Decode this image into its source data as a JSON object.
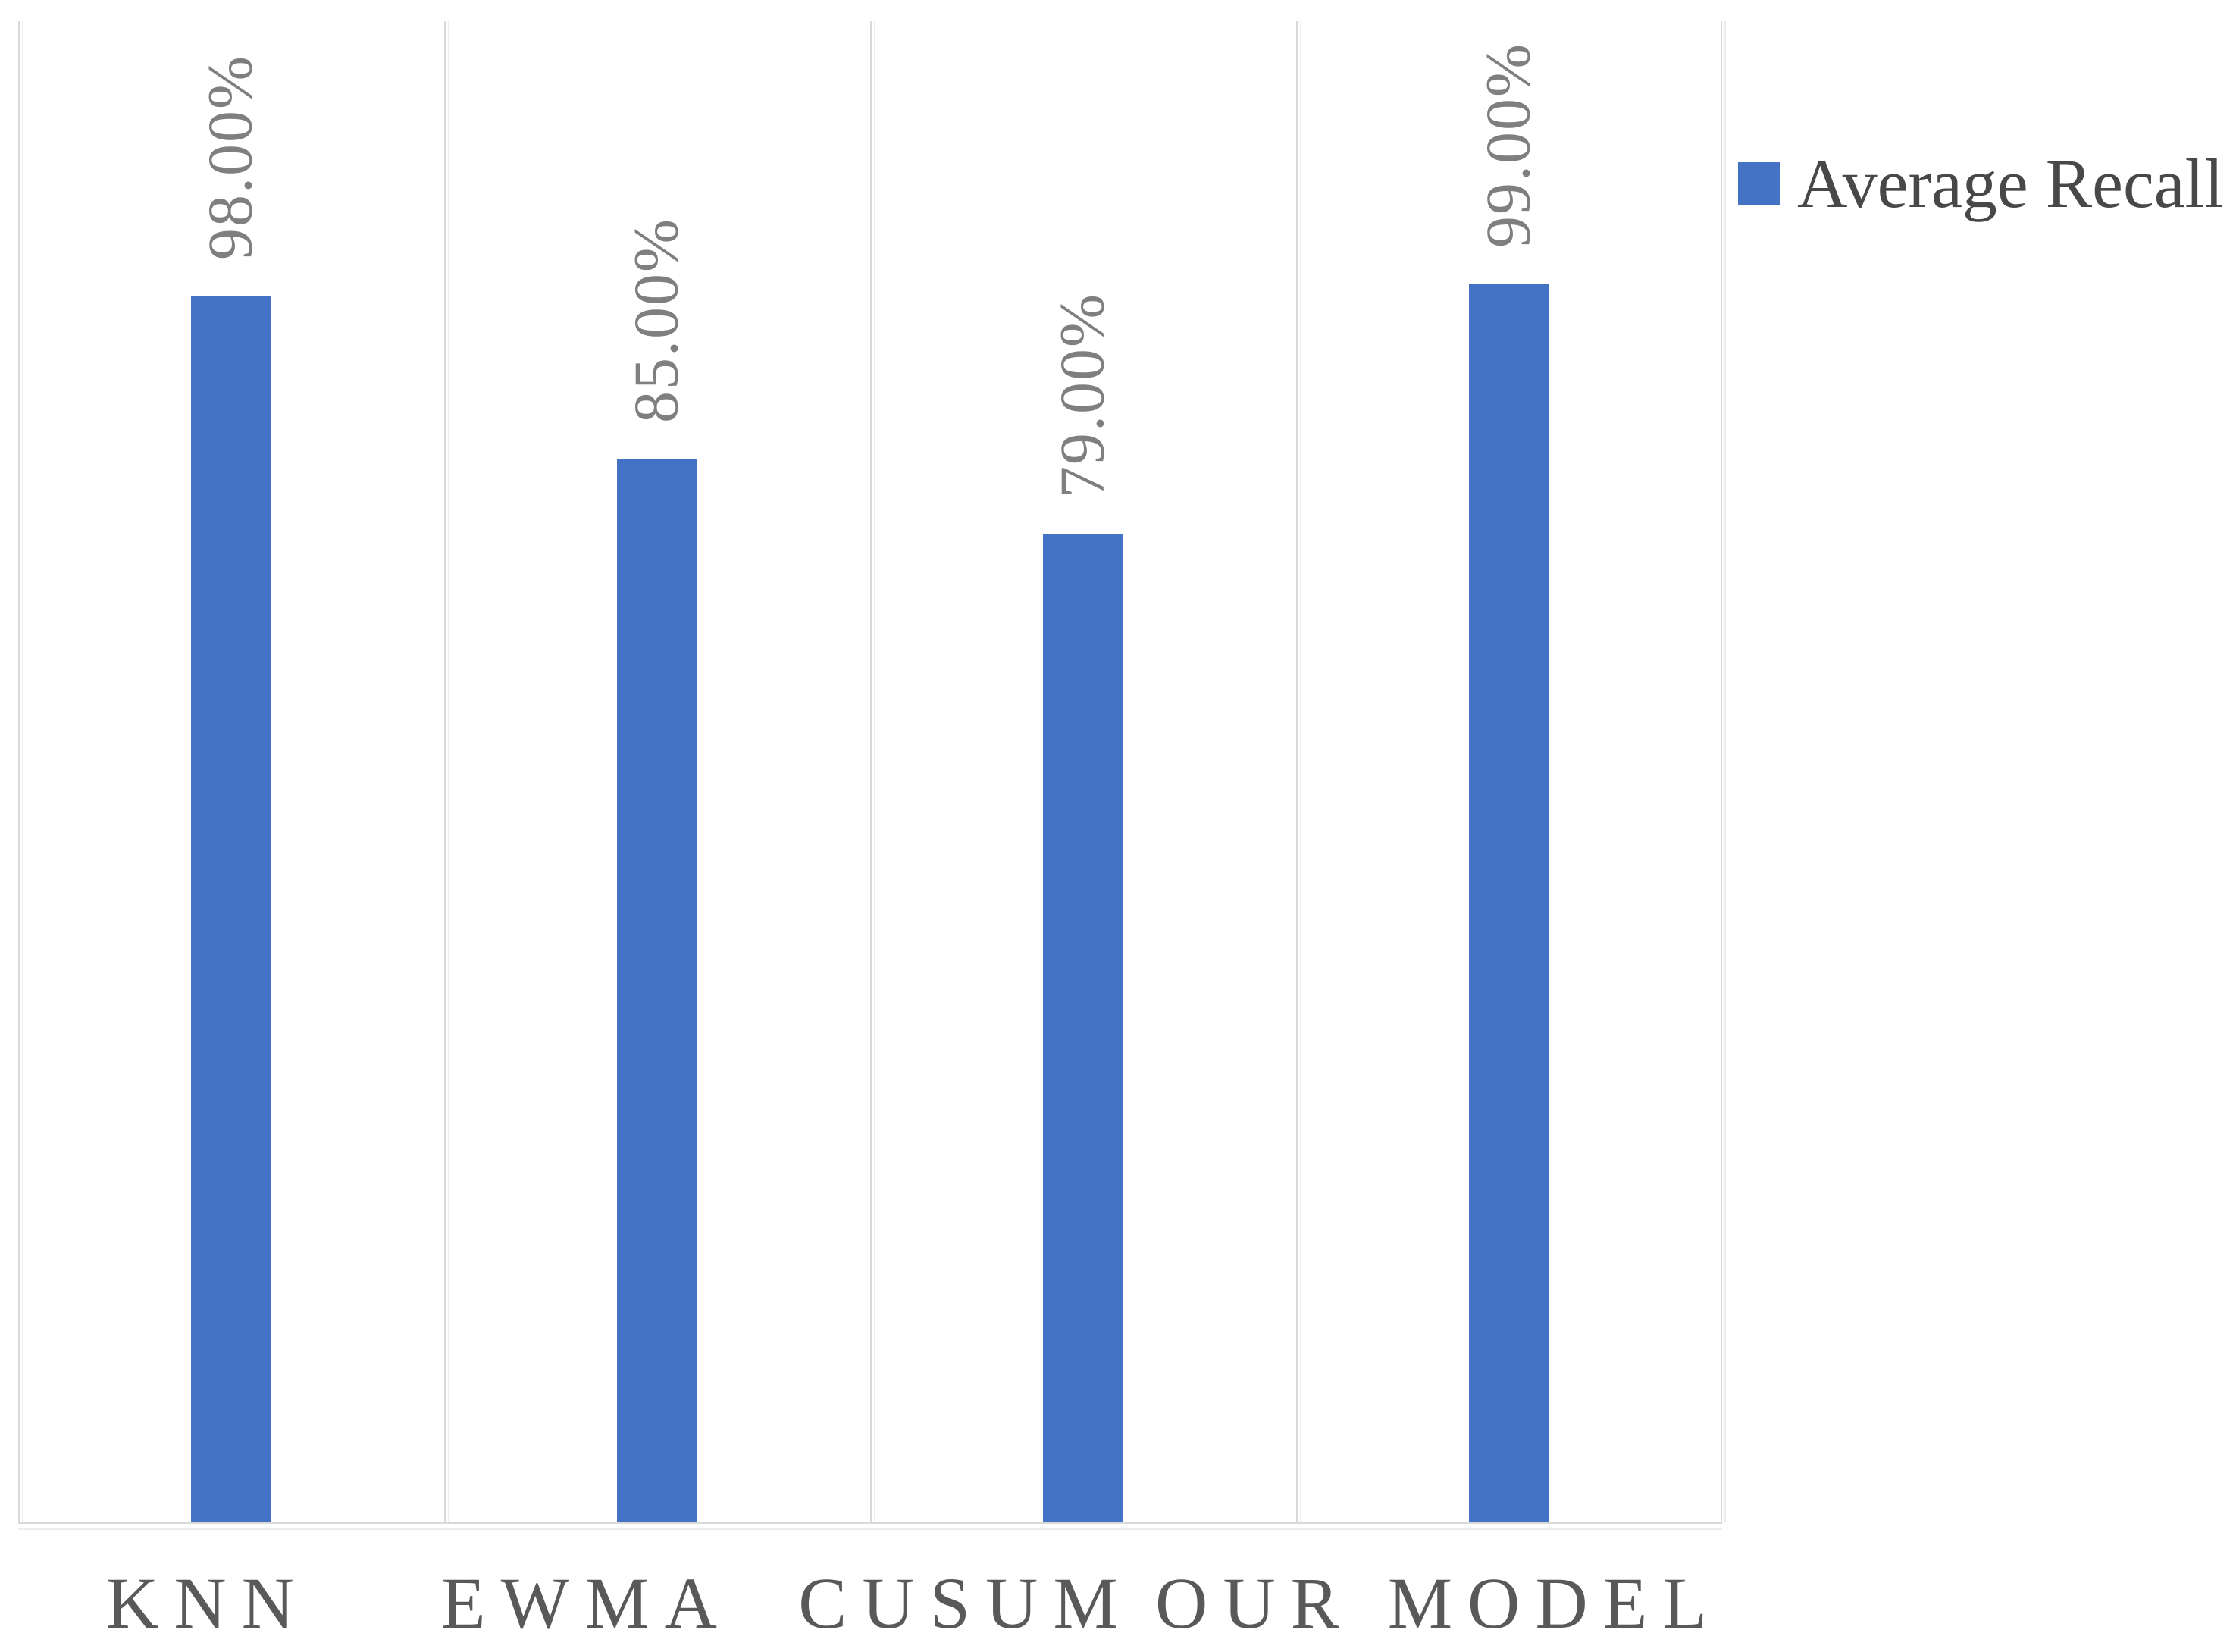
{
  "chart_data": {
    "type": "bar",
    "title": "",
    "categories": [
      "KNN",
      "EWMA",
      "CUSUM",
      "OUR MODEL"
    ],
    "series": [
      {
        "name": "Average Recall",
        "values": [
          98,
          85,
          79,
          99
        ]
      }
    ],
    "data_labels": [
      "98.00%",
      "85.00%",
      "79.00%",
      "99.00%"
    ],
    "unit": "percent",
    "ylim": [
      0,
      120
    ],
    "y_axis_visible": false,
    "grid": "vertical-category-dividers",
    "legend_position": "top-right",
    "bar_color": "#4472c4",
    "data_label_color": "#7f7f7f",
    "category_label_color": "#595959",
    "gridline_color": "#d9d9d9"
  },
  "legend": {
    "label": "Average Recall",
    "swatch_color": "#4472c4"
  }
}
